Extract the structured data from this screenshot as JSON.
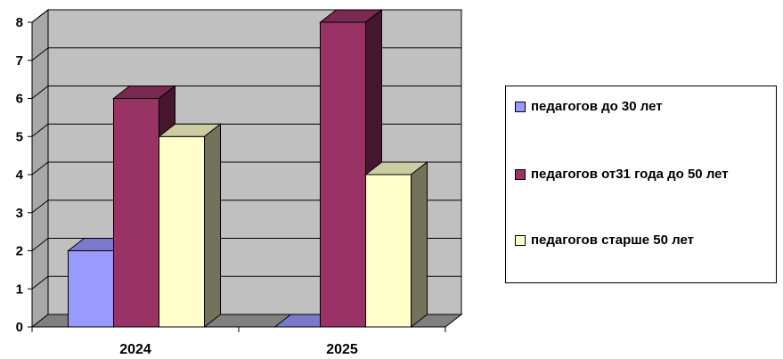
{
  "chart_data": {
    "type": "bar",
    "categories": [
      "2024",
      "2025"
    ],
    "series": [
      {
        "name": "педагогов до 30 лет",
        "values": [
          2,
          0
        ],
        "color": "#9999ff"
      },
      {
        "name": "педагогов от31 года до 50 лет",
        "values": [
          6,
          8
        ],
        "color": "#993366"
      },
      {
        "name": "педагогов старше 50 лет",
        "values": [
          5,
          4
        ],
        "color": "#ffffcc"
      }
    ],
    "yticks": [
      "0",
      "1",
      "2",
      "3",
      "4",
      "5",
      "6",
      "7",
      "8"
    ],
    "ylim": [
      0,
      8
    ],
    "grid": true,
    "three_d": true,
    "wall_color": "#c0c0c0",
    "floor_color": "#808080",
    "legend_position": "right"
  }
}
